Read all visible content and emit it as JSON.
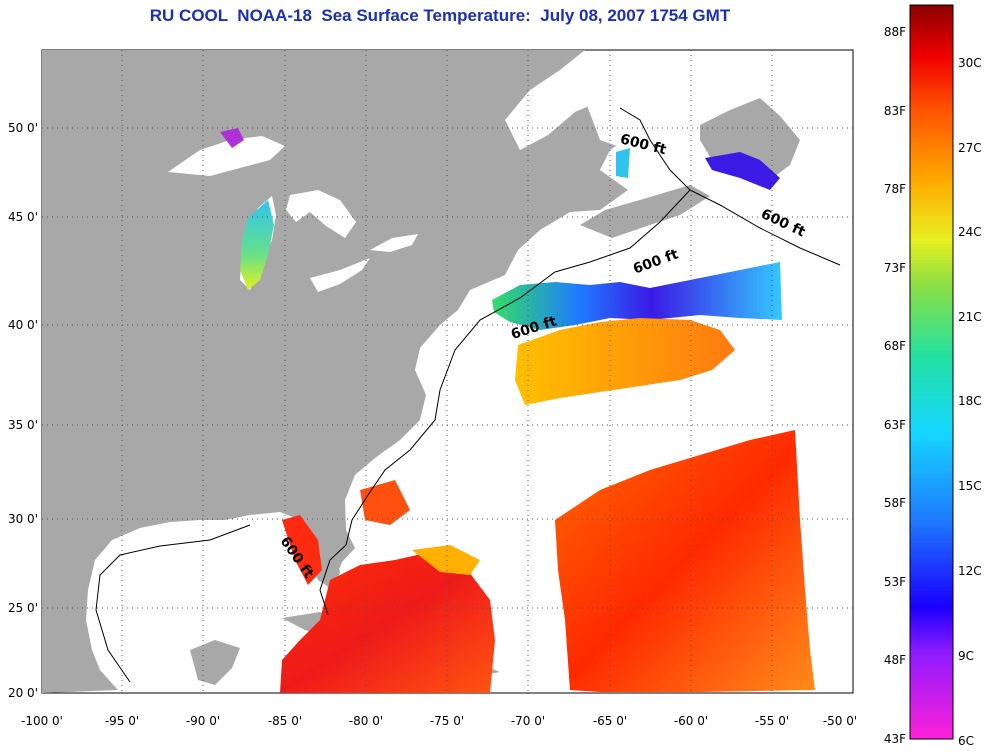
{
  "title": "RU COOL  NOAA-18  Sea Surface Temperature:  July 08, 2007 1754 GMT",
  "map": {
    "lon_ticks": [
      "-100 0'",
      "-95 0'",
      "-90 0'",
      "-85 0'",
      "-80 0'",
      "-75 0'",
      "-70 0'",
      "-65 0'",
      "-60 0'",
      "-55 0'",
      "-50 0'"
    ],
    "lat_ticks": [
      "50 0'",
      "45 0'",
      "40 0'",
      "35 0'",
      "30 0'",
      "25 0'",
      "20 0'"
    ],
    "lon_range": [
      -100,
      -50
    ],
    "lat_range": [
      20,
      52.5
    ],
    "land_color": "#a8a8a8",
    "depth_contour_labels": [
      "600 ft",
      "600 ft",
      "600 ft",
      "600 ft",
      "600 ft"
    ]
  },
  "colorbar": {
    "fahrenheit_labels": [
      "88F",
      "83F",
      "78F",
      "73F",
      "68F",
      "63F",
      "58F",
      "53F",
      "48F",
      "43F"
    ],
    "celsius_labels": [
      "30C",
      "27C",
      "24C",
      "21C",
      "18C",
      "15C",
      "12C",
      "9C",
      "6C"
    ],
    "range_c": [
      6,
      32
    ]
  }
}
